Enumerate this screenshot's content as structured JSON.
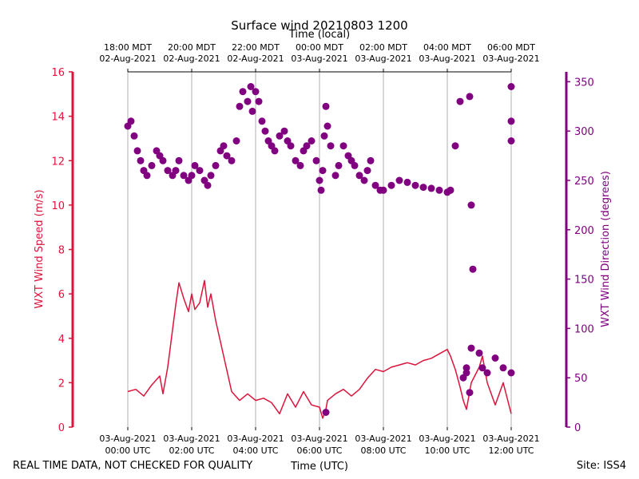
{
  "chart_data": {
    "type": "line",
    "title": "Surface wind 20210803 1200",
    "xlabel": "Time (UTC)",
    "xlabel_top": "Time (local)",
    "ylabel_left": "WXT Wind Speed (m/s)",
    "ylabel_right": "WXT Wind Direction (degrees)",
    "footer_left": "REAL TIME DATA, NOT CHECKED FOR QUALITY",
    "footer_right": "Site: ISS4",
    "x_range_hours": [
      0,
      12
    ],
    "ylim_left": [
      0,
      16
    ],
    "ylim_right": [
      0,
      360
    ],
    "colors": {
      "speed": "#dc143c",
      "direction": "#800080",
      "grid": "#b0b0b0"
    },
    "x_ticks_bottom": [
      {
        "h": 0,
        "l1": "03-Aug-2021",
        "l2": "00:00 UTC"
      },
      {
        "h": 2,
        "l1": "03-Aug-2021",
        "l2": "02:00 UTC"
      },
      {
        "h": 4,
        "l1": "03-Aug-2021",
        "l2": "04:00 UTC"
      },
      {
        "h": 6,
        "l1": "03-Aug-2021",
        "l2": "06:00 UTC"
      },
      {
        "h": 8,
        "l1": "03-Aug-2021",
        "l2": "08:00 UTC"
      },
      {
        "h": 10,
        "l1": "03-Aug-2021",
        "l2": "10:00 UTC"
      },
      {
        "h": 12,
        "l1": "03-Aug-2021",
        "l2": "12:00 UTC"
      }
    ],
    "x_ticks_top": [
      {
        "h": 0,
        "l1": "18:00 MDT",
        "l2": "02-Aug-2021"
      },
      {
        "h": 2,
        "l1": "20:00 MDT",
        "l2": "02-Aug-2021"
      },
      {
        "h": 4,
        "l1": "22:00 MDT",
        "l2": "02-Aug-2021"
      },
      {
        "h": 6,
        "l1": "00:00 MDT",
        "l2": "03-Aug-2021"
      },
      {
        "h": 8,
        "l1": "02:00 MDT",
        "l2": "03-Aug-2021"
      },
      {
        "h": 10,
        "l1": "04:00 MDT",
        "l2": "03-Aug-2021"
      },
      {
        "h": 12,
        "l1": "06:00 MDT",
        "l2": "03-Aug-2021"
      }
    ],
    "y_ticks_left": [
      0,
      2,
      4,
      6,
      8,
      10,
      12,
      14,
      16
    ],
    "y_ticks_right": [
      0,
      50,
      100,
      150,
      200,
      250,
      300,
      350
    ],
    "series": [
      {
        "name": "WXT Wind Speed",
        "axis": "left",
        "style": "line",
        "x": [
          0,
          0.25,
          0.5,
          0.75,
          1,
          1.1,
          1.25,
          1.5,
          1.6,
          1.75,
          1.9,
          2,
          2.1,
          2.25,
          2.4,
          2.5,
          2.6,
          2.75,
          3,
          3.25,
          3.5,
          3.75,
          4,
          4.25,
          4.5,
          4.75,
          5,
          5.25,
          5.5,
          5.75,
          6,
          6.1,
          6.2,
          6.25,
          6.5,
          6.75,
          7,
          7.25,
          7.5,
          7.75,
          8,
          8.25,
          8.5,
          8.75,
          9,
          9.25,
          9.5,
          9.75,
          10,
          10.1,
          10.25,
          10.4,
          10.5,
          10.6,
          10.75,
          11,
          11.1,
          11.25,
          11.5,
          11.75,
          12
        ],
        "values": [
          1.6,
          1.7,
          1.4,
          1.9,
          2.3,
          1.5,
          2.7,
          5.5,
          6.5,
          5.8,
          5.2,
          6.0,
          5.3,
          5.6,
          6.6,
          5.4,
          6.0,
          4.8,
          3.2,
          1.6,
          1.2,
          1.5,
          1.2,
          1.3,
          1.1,
          0.6,
          1.5,
          0.9,
          1.6,
          1.0,
          0.9,
          0.4,
          0.8,
          1.2,
          1.5,
          1.7,
          1.4,
          1.7,
          2.2,
          2.6,
          2.5,
          2.7,
          2.8,
          2.9,
          2.8,
          3.0,
          3.1,
          3.3,
          3.5,
          3.2,
          2.6,
          1.8,
          1.2,
          0.8,
          2.0,
          2.7,
          3.2,
          2.0,
          1.0,
          2.0,
          0.6
        ]
      },
      {
        "name": "WXT Wind Direction",
        "axis": "right",
        "style": "markers",
        "x": [
          0,
          0.1,
          0.2,
          0.3,
          0.4,
          0.5,
          0.6,
          0.75,
          0.9,
          1,
          1.1,
          1.25,
          1.4,
          1.5,
          1.6,
          1.75,
          1.9,
          2,
          2.1,
          2.25,
          2.4,
          2.5,
          2.6,
          2.75,
          2.9,
          3,
          3.1,
          3.25,
          3.4,
          3.5,
          3.6,
          3.75,
          3.85,
          3.9,
          4,
          4.1,
          4.2,
          4.3,
          4.4,
          4.5,
          4.6,
          4.75,
          4.9,
          5,
          5.1,
          5.25,
          5.4,
          5.5,
          5.6,
          5.75,
          5.9,
          6,
          6.05,
          6.1,
          6.15,
          6.2,
          6.25,
          6.35,
          6.5,
          6.6,
          6.75,
          6.9,
          7,
          7.1,
          7.25,
          7.4,
          7.5,
          7.6,
          7.75,
          7.9,
          8,
          8.25,
          8.5,
          8.75,
          9,
          9.25,
          9.5,
          9.75,
          10,
          10.1,
          10.25,
          10.4,
          10.5,
          10.6,
          10.75,
          11,
          11.1,
          11.25,
          11.5,
          11.75,
          12,
          12,
          12,
          12
        ],
        "values": [
          305,
          310,
          295,
          280,
          270,
          260,
          255,
          265,
          280,
          275,
          270,
          260,
          255,
          260,
          270,
          255,
          250,
          255,
          265,
          260,
          250,
          245,
          255,
          265,
          280,
          285,
          275,
          270,
          290,
          325,
          340,
          330,
          345,
          320,
          340,
          330,
          310,
          300,
          290,
          285,
          280,
          295,
          300,
          290,
          285,
          270,
          265,
          280,
          285,
          290,
          270,
          250,
          240,
          260,
          295,
          325,
          305,
          285,
          255,
          265,
          285,
          275,
          270,
          265,
          255,
          250,
          260,
          270,
          245,
          240,
          240,
          245,
          250,
          248,
          245,
          243,
          242,
          240,
          238,
          240,
          285,
          330,
          50,
          60,
          80,
          75,
          60,
          55,
          70,
          60,
          55,
          310,
          290,
          345
        ]
      },
      {
        "name": "WXT Wind Direction (outliers)",
        "axis": "right",
        "style": "markers",
        "x": [
          6.2,
          10.7,
          10.75,
          10.8,
          10.7,
          10.6
        ],
        "values": [
          15,
          335,
          225,
          160,
          35,
          55
        ]
      }
    ]
  }
}
